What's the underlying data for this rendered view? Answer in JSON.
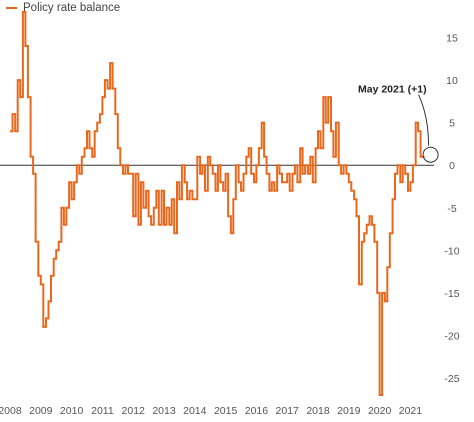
{
  "chart_data": {
    "type": "line",
    "step": true,
    "title": "",
    "xlabel": "",
    "ylabel": "",
    "xlim": [
      2008,
      2021.7
    ],
    "ylim": [
      -27,
      18
    ],
    "x_ticks": [
      2008,
      2009,
      2010,
      2011,
      2012,
      2013,
      2014,
      2015,
      2016,
      2017,
      2018,
      2019,
      2020,
      2021
    ],
    "y_ticks": [
      15,
      10,
      5,
      0,
      -5,
      -10,
      -15,
      -20,
      -25
    ],
    "y_axis_side": "right",
    "zero_line": true,
    "grid": false,
    "legend": {
      "placement": "top-left",
      "entries": [
        "Policy rate balance"
      ]
    },
    "colors": {
      "series": "#e8691e",
      "zero_line": "#333333",
      "axis_text": "#555555"
    },
    "series": [
      {
        "name": "Policy rate balance",
        "points": [
          [
            2008.0,
            4
          ],
          [
            2008.08,
            6
          ],
          [
            2008.17,
            4
          ],
          [
            2008.25,
            10
          ],
          [
            2008.33,
            8
          ],
          [
            2008.42,
            18
          ],
          [
            2008.5,
            14
          ],
          [
            2008.58,
            8
          ],
          [
            2008.67,
            1
          ],
          [
            2008.75,
            -1
          ],
          [
            2008.83,
            -9
          ],
          [
            2008.92,
            -13
          ],
          [
            2009.0,
            -14
          ],
          [
            2009.08,
            -19
          ],
          [
            2009.17,
            -18
          ],
          [
            2009.25,
            -16
          ],
          [
            2009.33,
            -13
          ],
          [
            2009.42,
            -11
          ],
          [
            2009.5,
            -10
          ],
          [
            2009.58,
            -9
          ],
          [
            2009.67,
            -5
          ],
          [
            2009.75,
            -7
          ],
          [
            2009.83,
            -5
          ],
          [
            2009.92,
            -2
          ],
          [
            2010.0,
            -4
          ],
          [
            2010.08,
            -2
          ],
          [
            2010.17,
            0
          ],
          [
            2010.25,
            -1
          ],
          [
            2010.33,
            1
          ],
          [
            2010.42,
            2
          ],
          [
            2010.5,
            4
          ],
          [
            2010.58,
            2
          ],
          [
            2010.67,
            1
          ],
          [
            2010.75,
            4
          ],
          [
            2010.83,
            5
          ],
          [
            2010.92,
            6
          ],
          [
            2011.0,
            8
          ],
          [
            2011.08,
            10
          ],
          [
            2011.17,
            9
          ],
          [
            2011.25,
            12
          ],
          [
            2011.33,
            9
          ],
          [
            2011.42,
            6
          ],
          [
            2011.5,
            2
          ],
          [
            2011.58,
            0
          ],
          [
            2011.67,
            -1
          ],
          [
            2011.75,
            0
          ],
          [
            2011.83,
            -1
          ],
          [
            2011.92,
            -1
          ],
          [
            2012.0,
            -6
          ],
          [
            2012.08,
            -1
          ],
          [
            2012.17,
            -7
          ],
          [
            2012.25,
            -2
          ],
          [
            2012.33,
            -5
          ],
          [
            2012.42,
            -3
          ],
          [
            2012.5,
            -6
          ],
          [
            2012.58,
            -7
          ],
          [
            2012.67,
            -5
          ],
          [
            2012.75,
            -3
          ],
          [
            2012.83,
            -7
          ],
          [
            2012.92,
            -3
          ],
          [
            2013.0,
            -7
          ],
          [
            2013.08,
            -5
          ],
          [
            2013.17,
            -7
          ],
          [
            2013.25,
            -4
          ],
          [
            2013.33,
            -8
          ],
          [
            2013.42,
            -2
          ],
          [
            2013.5,
            -4
          ],
          [
            2013.58,
            0
          ],
          [
            2013.67,
            -2
          ],
          [
            2013.75,
            -4
          ],
          [
            2013.83,
            -3
          ],
          [
            2013.92,
            -4
          ],
          [
            2014.0,
            -4
          ],
          [
            2014.08,
            1
          ],
          [
            2014.17,
            -1
          ],
          [
            2014.25,
            0
          ],
          [
            2014.33,
            -3
          ],
          [
            2014.42,
            1
          ],
          [
            2014.5,
            0
          ],
          [
            2014.58,
            -1
          ],
          [
            2014.67,
            -3
          ],
          [
            2014.75,
            0
          ],
          [
            2014.83,
            -2
          ],
          [
            2014.92,
            -3
          ],
          [
            2015.0,
            -1
          ],
          [
            2015.08,
            -6
          ],
          [
            2015.17,
            -8
          ],
          [
            2015.25,
            -4
          ],
          [
            2015.33,
            0
          ],
          [
            2015.42,
            -2
          ],
          [
            2015.5,
            -3
          ],
          [
            2015.58,
            -1
          ],
          [
            2015.67,
            1
          ],
          [
            2015.75,
            2
          ],
          [
            2015.83,
            -1
          ],
          [
            2015.92,
            -2
          ],
          [
            2016.0,
            0
          ],
          [
            2016.08,
            2
          ],
          [
            2016.17,
            5
          ],
          [
            2016.25,
            1
          ],
          [
            2016.33,
            -1
          ],
          [
            2016.42,
            -3
          ],
          [
            2016.5,
            -2
          ],
          [
            2016.58,
            -3
          ],
          [
            2016.67,
            0
          ],
          [
            2016.75,
            -1
          ],
          [
            2016.83,
            -2
          ],
          [
            2016.92,
            -2
          ],
          [
            2017.0,
            -1
          ],
          [
            2017.08,
            -3
          ],
          [
            2017.17,
            -1
          ],
          [
            2017.25,
            0
          ],
          [
            2017.33,
            -2
          ],
          [
            2017.42,
            2
          ],
          [
            2017.5,
            -1
          ],
          [
            2017.58,
            0
          ],
          [
            2017.67,
            -1
          ],
          [
            2017.75,
            1
          ],
          [
            2017.83,
            -2
          ],
          [
            2017.92,
            2
          ],
          [
            2018.0,
            4
          ],
          [
            2018.08,
            2
          ],
          [
            2018.17,
            8
          ],
          [
            2018.25,
            5
          ],
          [
            2018.33,
            8
          ],
          [
            2018.42,
            4
          ],
          [
            2018.5,
            1
          ],
          [
            2018.58,
            5
          ],
          [
            2018.67,
            0
          ],
          [
            2018.75,
            -1
          ],
          [
            2018.83,
            0
          ],
          [
            2018.92,
            -1
          ],
          [
            2019.0,
            -2
          ],
          [
            2019.08,
            -3
          ],
          [
            2019.17,
            -4
          ],
          [
            2019.25,
            -6
          ],
          [
            2019.33,
            -14
          ],
          [
            2019.42,
            -9
          ],
          [
            2019.5,
            -8
          ],
          [
            2019.58,
            -7
          ],
          [
            2019.67,
            -6
          ],
          [
            2019.75,
            -7
          ],
          [
            2019.83,
            -9
          ],
          [
            2019.92,
            -15
          ],
          [
            2020.0,
            -27
          ],
          [
            2020.08,
            -15
          ],
          [
            2020.17,
            -16
          ],
          [
            2020.25,
            -12
          ],
          [
            2020.33,
            -8
          ],
          [
            2020.42,
            -4
          ],
          [
            2020.5,
            -1
          ],
          [
            2020.58,
            0
          ],
          [
            2020.67,
            -2
          ],
          [
            2020.75,
            0
          ],
          [
            2020.83,
            -1
          ],
          [
            2020.92,
            -3
          ],
          [
            2021.0,
            -2
          ],
          [
            2021.08,
            0
          ],
          [
            2021.17,
            5
          ],
          [
            2021.25,
            4
          ],
          [
            2021.33,
            1
          ]
        ]
      }
    ],
    "annotations": [
      {
        "text": "May 2021 (+1)",
        "x": 2021.33,
        "y": 1
      }
    ]
  }
}
